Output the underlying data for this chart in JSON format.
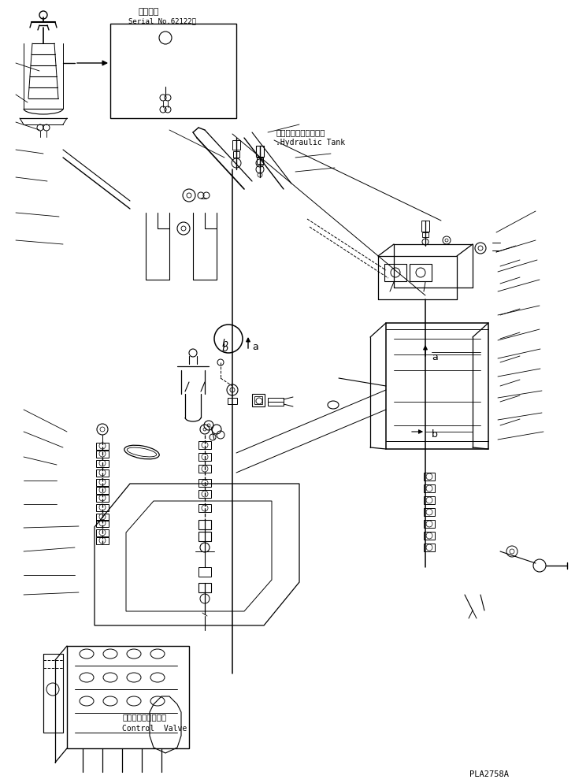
{
  "bg_color": "#ffffff",
  "line_color": "#000000",
  "fig_width": 7.3,
  "fig_height": 9.94,
  "dpi": 100,
  "title_jp": "適用号機",
  "serial_text": "Serial No.62122～",
  "hydraulic_jp": "ハイドロリックタンク",
  "hydraulic_en": "Hydraulic Tank",
  "control_valve_jp": "コントロールバルブ",
  "control_valve_en": "Control  Valve",
  "part_number": "PLA2758A"
}
